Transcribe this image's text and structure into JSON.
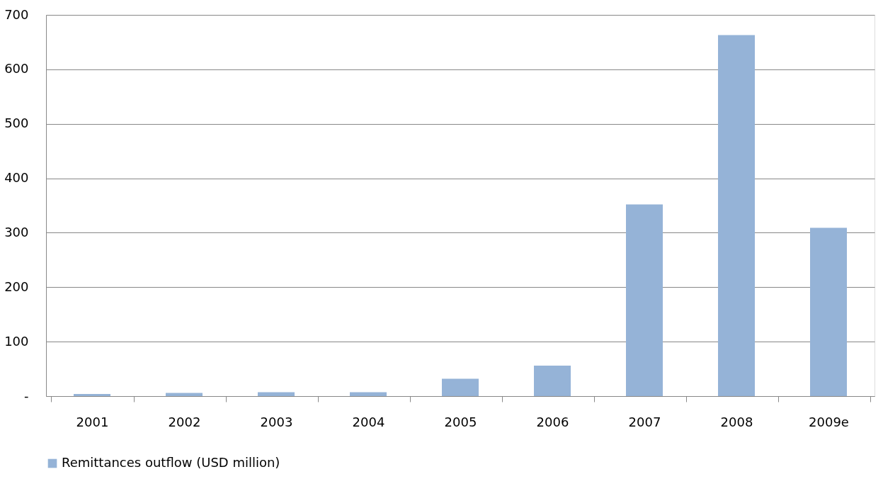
{
  "chart_data": {
    "type": "bar",
    "categories": [
      "2001",
      "2002",
      "2003",
      "2004",
      "2005",
      "2006",
      "2007",
      "2008",
      "2009e"
    ],
    "series": [
      {
        "name": "Remittances outflow (USD million)",
        "color": "#95b3d7",
        "values": [
          4,
          6,
          7,
          7,
          32,
          56,
          352,
          663,
          309
        ]
      }
    ],
    "ylim": [
      0,
      700
    ],
    "yticks": [
      {
        "value": 0,
        "label": "-"
      },
      100,
      200,
      300,
      400,
      500,
      600,
      700
    ],
    "grid": "y",
    "legend": "bottom"
  }
}
